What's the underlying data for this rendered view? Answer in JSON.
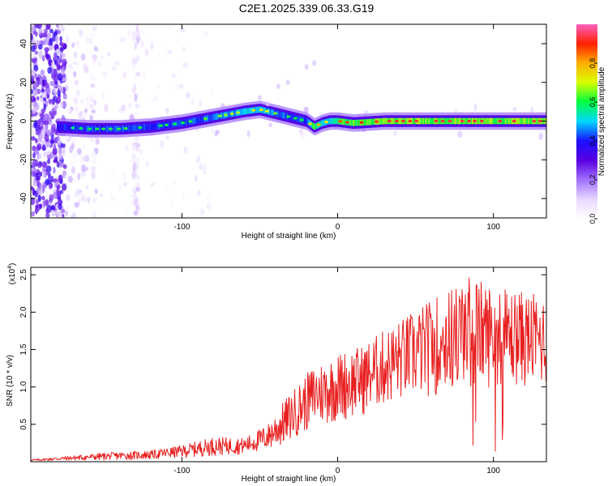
{
  "title": "C2E1.2025.339.06.33.G19",
  "colors": {
    "snr_line": "#e82020",
    "colormap": [
      "#ffffff",
      "#e8d8ff",
      "#a070ff",
      "#5a00e0",
      "#1a10ff",
      "#00d8ff",
      "#00ff40",
      "#d8ff00",
      "#ffb000",
      "#ff2000",
      "#ff60c0"
    ]
  },
  "chart_data": [
    {
      "type": "heatmap",
      "title": "C2E1.2025.339.06.33.G19",
      "xlabel": "Height of straight line (km)",
      "ylabel": "Frequency (Hz)",
      "xlim": [
        -197,
        134
      ],
      "ylim": [
        -50,
        50
      ],
      "xticks": [
        -100,
        0,
        100
      ],
      "xtick_labels": [
        "-100",
        "0",
        "100"
      ],
      "yticks": [
        -40,
        -20,
        0,
        20,
        40
      ],
      "ytick_labels": [
        "-40",
        "-20",
        "0",
        "20",
        "40"
      ],
      "colorbar": {
        "label": "Normalized spectral amplitude",
        "range": [
          0.0,
          1.0
        ],
        "ticks": [
          0.0,
          0.2,
          0.4,
          0.6,
          0.8
        ],
        "tick_labels": [
          "0.0",
          "0.2",
          "0.4",
          "0.6",
          "0.8"
        ]
      },
      "ridge": {
        "description_x": [
          -180,
          -160,
          -140,
          -120,
          -100,
          -80,
          -60,
          -50,
          -40,
          -30,
          -20,
          -15,
          -10,
          -5,
          0,
          10,
          30,
          60,
          100,
          134
        ],
        "frequency_hz": [
          -3,
          -4,
          -4,
          -3,
          -1,
          2,
          5,
          6,
          4,
          2,
          0,
          -3,
          -1,
          0,
          0,
          -1,
          0,
          0,
          0,
          0
        ],
        "peak_amplitude": [
          0.55,
          0.6,
          0.62,
          0.6,
          0.6,
          0.65,
          0.7,
          0.75,
          0.65,
          0.6,
          0.6,
          0.9,
          0.7,
          0.75,
          0.85,
          0.9,
          0.92,
          0.93,
          0.93,
          0.93
        ]
      }
    },
    {
      "type": "line",
      "xlabel": "Height of straight line (km)",
      "ylabel": "SNR (10 * v/v)",
      "y_multiplier": "(x10",
      "y_multiplier_exp": "4",
      "xlim": [
        -197,
        134
      ],
      "ylim": [
        0,
        2.6
      ],
      "xticks": [
        -100,
        0,
        100
      ],
      "xtick_labels": [
        "-100",
        "0",
        "100"
      ],
      "yticks": [
        0.5,
        1.0,
        1.5,
        2.0,
        2.5
      ],
      "ytick_labels": [
        "0.5",
        "1.0",
        "1.5",
        "2.0",
        "2.5"
      ],
      "series": [
        {
          "envelope_x": [
            -197,
            -150,
            -120,
            -100,
            -80,
            -60,
            -45,
            -35,
            -25,
            -15,
            -5,
            5,
            15,
            25,
            40,
            55,
            70,
            85,
            100,
            115,
            134
          ],
          "envelope_y": [
            0.03,
            0.12,
            0.15,
            0.22,
            0.33,
            0.32,
            0.5,
            0.8,
            1.05,
            1.3,
            1.4,
            1.5,
            1.55,
            1.7,
            1.9,
            2.1,
            2.3,
            2.5,
            2.35,
            2.3,
            2.2
          ],
          "floor_y": [
            0.01,
            0.02,
            0.03,
            0.05,
            0.08,
            0.1,
            0.15,
            0.2,
            0.35,
            0.45,
            0.5,
            0.55,
            0.6,
            0.7,
            0.8,
            0.85,
            0.9,
            0.95,
            1.0,
            1.0,
            1.0
          ]
        }
      ]
    }
  ]
}
